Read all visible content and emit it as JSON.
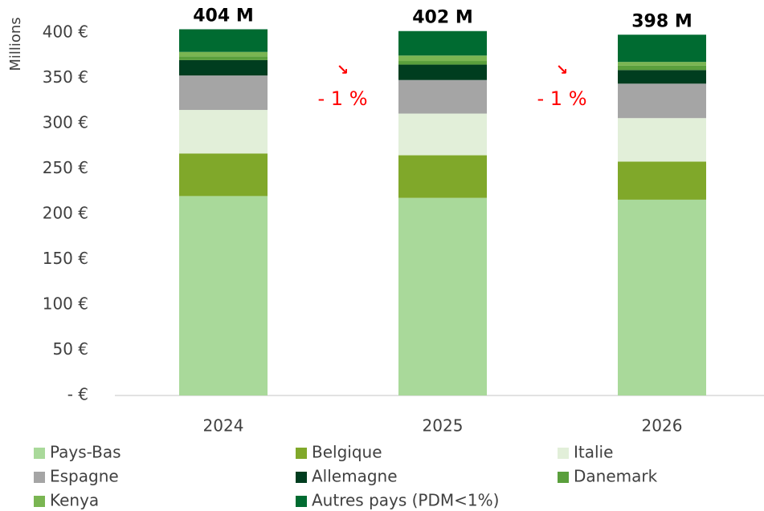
{
  "chart_data": {
    "type": "stacked_bar",
    "y_label": "Millions",
    "categories": [
      "2024",
      "2025",
      "2026"
    ],
    "series": [
      {
        "name": "Pays-Bas",
        "color": "#a9d99a",
        "values": [
          220,
          218,
          216
        ]
      },
      {
        "name": "Belgique",
        "color": "#80a82a",
        "values": [
          47,
          47,
          42
        ]
      },
      {
        "name": "Italie",
        "color": "#e2efd9",
        "values": [
          48,
          46,
          48
        ]
      },
      {
        "name": "Espagne",
        "color": "#a5a5a5",
        "values": [
          38,
          37,
          38
        ]
      },
      {
        "name": "Allemagne",
        "color": "#003d1f",
        "values": [
          17,
          17,
          15
        ]
      },
      {
        "name": "Danemark",
        "color": "#5a9f3c",
        "values": [
          4,
          4,
          5
        ]
      },
      {
        "name": "Kenya",
        "color": "#7ab552",
        "values": [
          5,
          6,
          4
        ]
      },
      {
        "name": "Autres pays (PDM<1%)",
        "color": "#006b31",
        "values": [
          25,
          27,
          30
        ]
      }
    ],
    "totals": {
      "values": [
        404,
        402,
        398
      ],
      "value_labels": [
        "404 M",
        "402 M",
        "398 M"
      ]
    },
    "changes": {
      "arrow": "↘",
      "values": [
        -1,
        -1
      ],
      "value_labels": [
        "- 1 %",
        "- 1 %"
      ],
      "color": "#ff0000"
    },
    "ylim": [
      0,
      400
    ],
    "yticks": [
      {
        "value": 0,
        "label": "-  €"
      },
      {
        "value": 50,
        "label": "50 €"
      },
      {
        "value": 100,
        "label": "100 €"
      },
      {
        "value": 150,
        "label": "150 €"
      },
      {
        "value": 200,
        "label": "200 €"
      },
      {
        "value": 250,
        "label": "250 €"
      },
      {
        "value": 300,
        "label": "300 €"
      },
      {
        "value": 350,
        "label": "350 €"
      },
      {
        "value": 400,
        "label": "400 €"
      }
    ],
    "grid": false
  }
}
